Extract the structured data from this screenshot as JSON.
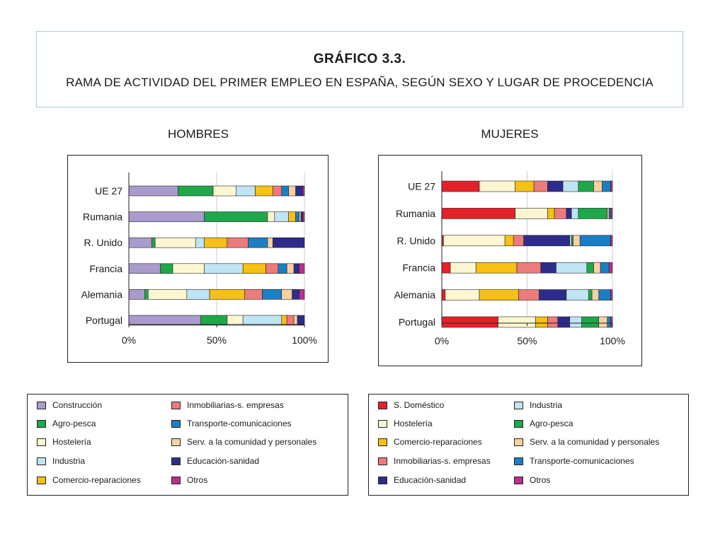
{
  "header": {
    "title": "GRÁFICO 3.3.",
    "subtitle": "RAMA DE ACTIVIDAD DEL PRIMER EMPLEO EN ESPAÑA, SEGÚN SEXO Y LUGAR DE PROCEDENCIA"
  },
  "colors": {
    "Construcción": "#a99bcc",
    "Agro-pesca": "#1ea84a",
    "Hostelería": "#fdf6d2",
    "Industria": "#bfe4f4",
    "Comercio-reparaciones": "#f6c014",
    "Inmobiliarias-s. empresas": "#ee7b7b",
    "Transporte-comunicaciones": "#1a7fc4",
    "Serv. a la comunidad y personales": "#f9d0a2",
    "Educación-sanidad": "#2d2c8c",
    "Otros": "#b8308c",
    "S. Doméstico": "#e62028"
  },
  "chart_data": [
    {
      "type": "bar",
      "orientation": "horizontal-stacked-100",
      "title": "HOMBRES",
      "categories": [
        "UE 27",
        "Rumania",
        "R. Unido",
        "Francia",
        "Alemania",
        "Portugal"
      ],
      "xticks": [
        "0%",
        "50%",
        "100%"
      ],
      "xlim": [
        0,
        100
      ],
      "series": [
        {
          "name": "Construcción",
          "values": [
            28,
            43,
            13,
            18,
            9,
            41
          ]
        },
        {
          "name": "Agro-pesca",
          "values": [
            20,
            36,
            2,
            7,
            2,
            15
          ]
        },
        {
          "name": "Hostelería",
          "values": [
            13,
            4,
            23,
            18,
            22,
            9
          ]
        },
        {
          "name": "Industria",
          "values": [
            11,
            8,
            5,
            22,
            13,
            22
          ]
        },
        {
          "name": "Comercio-reparaciones",
          "values": [
            10,
            4,
            13,
            13,
            20,
            3
          ]
        },
        {
          "name": "Inmobiliarias-s. empresas",
          "values": [
            5,
            0,
            12,
            7,
            10,
            4
          ]
        },
        {
          "name": "Transporte-comunicaciones",
          "values": [
            4,
            2,
            11,
            5,
            11,
            0
          ]
        },
        {
          "name": "Serv. a la comunidad y personales",
          "values": [
            4,
            1,
            3,
            4,
            6,
            2
          ]
        },
        {
          "name": "Educación-sanidad",
          "values": [
            4,
            1,
            18,
            3,
            4,
            4
          ]
        },
        {
          "name": "Otros",
          "values": [
            1,
            1,
            0,
            3,
            3,
            0
          ]
        }
      ]
    },
    {
      "type": "bar",
      "orientation": "horizontal-stacked-100",
      "title": "MUJERES",
      "categories": [
        "UE 27",
        "Rumania",
        "R. Unido",
        "Francia",
        "Alemania",
        "Portugal"
      ],
      "xticks": [
        "0%",
        "50%",
        "100%"
      ],
      "xlim": [
        0,
        100
      ],
      "series": [
        {
          "name": "S. Doméstico",
          "values": [
            22,
            43,
            1,
            5,
            2,
            33
          ]
        },
        {
          "name": "Hostelería",
          "values": [
            21,
            19,
            36,
            15,
            20,
            22
          ]
        },
        {
          "name": "Comercio-reparaciones",
          "values": [
            11,
            4,
            5,
            24,
            23,
            7
          ]
        },
        {
          "name": "Inmobiliarias-s. empresas",
          "values": [
            8,
            7,
            6,
            14,
            12,
            6
          ]
        },
        {
          "name": "Educación-sanidad",
          "values": [
            9,
            3,
            27,
            9,
            16,
            7
          ]
        },
        {
          "name": "Industria",
          "values": [
            9,
            4,
            1,
            18,
            13,
            7
          ]
        },
        {
          "name": "Agro-pesca",
          "values": [
            9,
            17,
            1,
            4,
            2,
            10
          ]
        },
        {
          "name": "Serv. a la comunidad y personales",
          "values": [
            5,
            1,
            4,
            4,
            4,
            5
          ]
        },
        {
          "name": "Transporte-comunicaciones",
          "values": [
            5,
            1,
            18,
            5,
            7,
            2
          ]
        },
        {
          "name": "Otros",
          "values": [
            1,
            1,
            1,
            2,
            1,
            1
          ]
        }
      ]
    }
  ],
  "legend_left": [
    [
      "Construcción",
      "Inmobiliarias-s. empresas"
    ],
    [
      "Agro-pesca",
      "Transporte-comunicaciones"
    ],
    [
      "Hostelería",
      "Serv. a la comunidad y personales"
    ],
    [
      "Industria",
      "Educación-sanidad"
    ],
    [
      "Comercio-reparaciones",
      "Otros"
    ]
  ],
  "legend_right": [
    [
      "S. Doméstico",
      "Industria"
    ],
    [
      "Hostelería",
      "Agro-pesca"
    ],
    [
      "Comercio-reparaciones",
      "Serv. a la comunidad y personales"
    ],
    [
      "Inmobiliarias-s. empresas",
      "Transporte-comunicaciones"
    ],
    [
      "Educación-sanidad",
      "Otros"
    ]
  ]
}
